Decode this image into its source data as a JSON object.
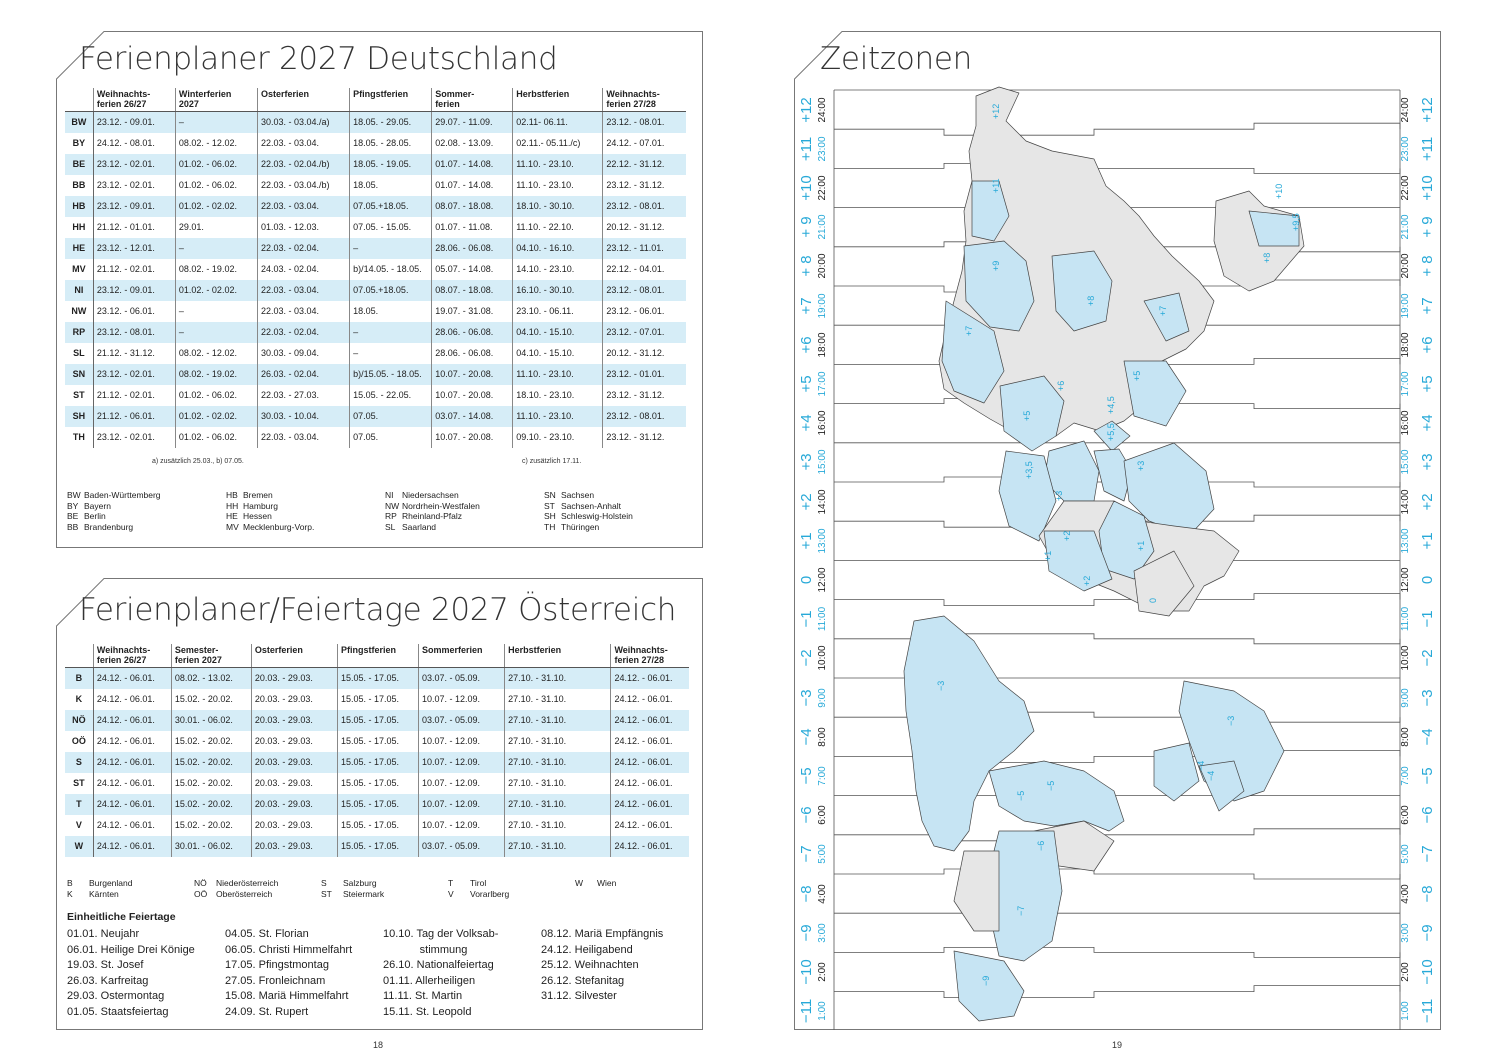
{
  "de": {
    "title": "Ferienplaner 2027 Deutschland",
    "headers": [
      "Weihnachts-\nferien 26/27",
      "Winterferien\n2027",
      "Osterferien",
      "Pfingstferien",
      "Sommer-\nferien",
      "Herbstferien",
      "Weihnachts-\nferien 27/28"
    ],
    "rows": [
      {
        "abbr": "BW",
        "cells": [
          "23.12. - 09.01.",
          "–",
          "30.03. - 03.04./a)",
          "18.05. - 29.05.",
          "29.07. - 11.09.",
          "02.11- 06.11.",
          "23.12. - 08.01."
        ]
      },
      {
        "abbr": "BY",
        "cells": [
          "24.12. - 08.01.",
          "08.02. - 12.02.",
          "22.03. - 03.04.",
          "18.05. - 28.05.",
          "02.08. - 13.09.",
          "02.11.- 05.11./c)",
          "24.12. - 07.01."
        ]
      },
      {
        "abbr": "BE",
        "cells": [
          "23.12. - 02.01.",
          "01.02. - 06.02.",
          "22.03. - 02.04./b)",
          "18.05. - 19.05.",
          "01.07. - 14.08.",
          "11.10. - 23.10.",
          "22.12. - 31.12."
        ]
      },
      {
        "abbr": "BB",
        "cells": [
          "23.12. - 02.01.",
          "01.02. - 06.02.",
          "22.03. - 03.04./b)",
          "18.05.",
          "01.07. - 14.08.",
          "11.10. - 23.10.",
          "23.12. - 31.12."
        ]
      },
      {
        "abbr": "HB",
        "cells": [
          "23.12. - 09.01.",
          "01.02. - 02.02.",
          "22.03. - 03.04.",
          "07.05.+18.05.",
          "08.07. - 18.08.",
          "18.10. - 30.10.",
          "23.12. - 08.01."
        ]
      },
      {
        "abbr": "HH",
        "cells": [
          "21.12. - 01.01.",
          "29.01.",
          "01.03. - 12.03.",
          "07.05. - 15.05.",
          "01.07. - 11.08.",
          "11.10. - 22.10.",
          "20.12. - 31.12."
        ]
      },
      {
        "abbr": "HE",
        "cells": [
          "23.12. - 12.01.",
          "–",
          "22.03. - 02.04.",
          "–",
          "28.06. - 06.08.",
          "04.10. - 16.10.",
          "23.12. - 11.01."
        ]
      },
      {
        "abbr": "MV",
        "cells": [
          "21.12. - 02.01.",
          "08.02. - 19.02.",
          "24.03. - 02.04.",
          "b)/14.05. - 18.05.",
          "05.07. - 14.08.",
          "14.10. - 23.10.",
          "22.12. - 04.01."
        ]
      },
      {
        "abbr": "NI",
        "cells": [
          "23.12. - 09.01.",
          "01.02. - 02.02.",
          "22.03. - 03.04.",
          "07.05.+18.05.",
          "08.07. - 18.08.",
          "16.10. - 30.10.",
          "23.12. - 08.01."
        ]
      },
      {
        "abbr": "NW",
        "cells": [
          "23.12. - 06.01.",
          "–",
          "22.03. - 03.04.",
          "18.05.",
          "19.07. - 31.08.",
          "23.10. - 06.11.",
          "23.12. - 06.01."
        ]
      },
      {
        "abbr": "RP",
        "cells": [
          "23.12. - 08.01.",
          "–",
          "22.03. - 02.04.",
          "–",
          "28.06. - 06.08.",
          "04.10. - 15.10.",
          "23.12. - 07.01."
        ]
      },
      {
        "abbr": "SL",
        "cells": [
          "21.12. - 31.12.",
          "08.02. - 12.02.",
          "30.03. - 09.04.",
          "–",
          "28.06. - 06.08.",
          "04.10. - 15.10.",
          "20.12. - 31.12."
        ]
      },
      {
        "abbr": "SN",
        "cells": [
          "23.12. - 02.01.",
          "08.02. - 19.02.",
          "26.03. - 02.04.",
          "b)/15.05. - 18.05.",
          "10.07. - 20.08.",
          "11.10. - 23.10.",
          "23.12. - 01.01."
        ]
      },
      {
        "abbr": "ST",
        "cells": [
          "21.12. - 02.01.",
          "01.02. - 06.02.",
          "22.03. - 27.03.",
          "15.05. - 22.05.",
          "10.07. - 20.08.",
          "18.10. - 23.10.",
          "23.12. - 31.12."
        ]
      },
      {
        "abbr": "SH",
        "cells": [
          "21.12. - 06.01.",
          "01.02. - 02.02.",
          "30.03. - 10.04.",
          "07.05.",
          "03.07. - 14.08.",
          "11.10. - 23.10.",
          "23.12. - 08.01."
        ]
      },
      {
        "abbr": "TH",
        "cells": [
          "23.12. - 02.01.",
          "01.02. - 06.02.",
          "22.03. - 03.04.",
          "07.05.",
          "10.07. - 20.08.",
          "09.10. - 23.10.",
          "23.12. - 31.12."
        ]
      }
    ],
    "footnote_a": "a) zusätzlich 25.03., b) 07.05.",
    "footnote_c": "c) zusätzlich 17.11.",
    "legend": [
      [
        {
          "ab": "BW",
          "name": "Baden-Württemberg"
        },
        {
          "ab": "BY",
          "name": "Bayern"
        },
        {
          "ab": "BE",
          "name": "Berlin"
        },
        {
          "ab": "BB",
          "name": "Brandenburg"
        }
      ],
      [
        {
          "ab": "HB",
          "name": "Bremen"
        },
        {
          "ab": "HH",
          "name": "Hamburg"
        },
        {
          "ab": "HE",
          "name": "Hessen"
        },
        {
          "ab": "MV",
          "name": "Mecklenburg-Vorp."
        }
      ],
      [
        {
          "ab": "NI",
          "name": "Niedersachsen"
        },
        {
          "ab": "NW",
          "name": "Nordrhein-Westfalen"
        },
        {
          "ab": "RP",
          "name": "Rheinland-Pfalz"
        },
        {
          "ab": "SL",
          "name": "Saarland"
        }
      ],
      [
        {
          "ab": "SN",
          "name": "Sachsen"
        },
        {
          "ab": "ST",
          "name": "Sachsen-Anhalt"
        },
        {
          "ab": "SH",
          "name": "Schleswig-Holstein"
        },
        {
          "ab": "TH",
          "name": "Thüringen"
        }
      ]
    ]
  },
  "at": {
    "title": "Ferienplaner/Feiertage 2027 Österreich",
    "headers": [
      "Weihnachts-\nferien 26/27",
      "Semester-\nferien 2027",
      "Osterferien",
      "Pfingstferien",
      "Sommerferien",
      "Herbstferien",
      "Weihnachts-\nferien 27/28"
    ],
    "rows": [
      {
        "abbr": "B",
        "cells": [
          "24.12. - 06.01.",
          "08.02. - 13.02.",
          "20.03. - 29.03.",
          "15.05. - 17.05.",
          "03.07. - 05.09.",
          "27.10. - 31.10.",
          "24.12. - 06.01."
        ]
      },
      {
        "abbr": "K",
        "cells": [
          "24.12. - 06.01.",
          "15.02. - 20.02.",
          "20.03. - 29.03.",
          "15.05. - 17.05.",
          "10.07. - 12.09.",
          "27.10. - 31.10.",
          "24.12. - 06.01."
        ]
      },
      {
        "abbr": "NÖ",
        "cells": [
          "24.12. - 06.01.",
          "30.01. - 06.02.",
          "20.03. - 29.03.",
          "15.05. - 17.05.",
          "03.07. - 05.09.",
          "27.10. - 31.10.",
          "24.12. - 06.01."
        ]
      },
      {
        "abbr": "OÖ",
        "cells": [
          "24.12. - 06.01.",
          "15.02. - 20.02.",
          "20.03. - 29.03.",
          "15.05. - 17.05.",
          "10.07. - 12.09.",
          "27.10. - 31.10.",
          "24.12. - 06.01."
        ]
      },
      {
        "abbr": "S",
        "cells": [
          "24.12. - 06.01.",
          "15.02. - 20.02.",
          "20.03. - 29.03.",
          "15.05. - 17.05.",
          "10.07. - 12.09.",
          "27.10. - 31.10.",
          "24.12. - 06.01."
        ]
      },
      {
        "abbr": "ST",
        "cells": [
          "24.12. - 06.01.",
          "15.02. - 20.02.",
          "20.03. - 29.03.",
          "15.05. - 17.05.",
          "10.07. - 12.09.",
          "27.10. - 31.10.",
          "24.12. - 06.01."
        ]
      },
      {
        "abbr": "T",
        "cells": [
          "24.12. - 06.01.",
          "15.02. - 20.02.",
          "20.03. - 29.03.",
          "15.05. - 17.05.",
          "10.07. - 12.09.",
          "27.10. - 31.10.",
          "24.12. - 06.01."
        ]
      },
      {
        "abbr": "V",
        "cells": [
          "24.12. - 06.01.",
          "15.02. - 20.02.",
          "20.03. - 29.03.",
          "15.05. - 17.05.",
          "10.07. - 12.09.",
          "27.10. - 31.10.",
          "24.12. - 06.01."
        ]
      },
      {
        "abbr": "W",
        "cells": [
          "24.12. - 06.01.",
          "30.01. - 06.02.",
          "20.03. - 29.03.",
          "15.05. - 17.05.",
          "03.07. - 05.09.",
          "27.10. - 31.10.",
          "24.12. - 06.01."
        ]
      }
    ],
    "legend": [
      [
        {
          "ab": "B",
          "name": "Burgenland"
        },
        {
          "ab": "K",
          "name": "Kärnten"
        }
      ],
      [
        {
          "ab": "NÖ",
          "name": "Niederösterreich"
        },
        {
          "ab": "OÖ",
          "name": "Oberösterreich"
        }
      ],
      [
        {
          "ab": "S",
          "name": "Salzburg"
        },
        {
          "ab": "ST",
          "name": "Steiermark"
        }
      ],
      [
        {
          "ab": "T",
          "name": "Tirol"
        },
        {
          "ab": "V",
          "name": "Vorarlberg"
        }
      ],
      [
        {
          "ab": "W",
          "name": "Wien"
        }
      ]
    ],
    "holidays_title": "Einheitliche Feiertage",
    "holidays": [
      [
        "01.01. Neujahr",
        "06.01. Heilige Drei Könige",
        "19.03. St. Josef",
        "26.03. Karfreitag",
        "29.03. Ostermontag",
        "01.05. Staatsfeiertag"
      ],
      [
        "04.05. St. Florian",
        "06.05. Christi Himmelfahrt",
        "17.05. Pfingstmontag",
        "27.05. Fronleichnam",
        "15.08. Mariä Himmelfahrt",
        "24.09. St. Rupert"
      ],
      [
        "10.10. Tag der Volksab-",
        "            stimmung",
        "26.10. Nationalfeiertag",
        "01.11. Allerheiligen",
        "11.11. St. Martin",
        "15.11. St. Leopold"
      ],
      [
        "08.12. Mariä Empfängnis",
        "24.12. Heiligabend",
        "25.12. Weihnachten",
        "26.12. Stefanitag",
        "31.12. Silvester"
      ]
    ]
  },
  "tz": {
    "title": "Zeitzonen",
    "zones": [
      {
        "offset": "+12",
        "time": "24:00"
      },
      {
        "offset": "+11",
        "time": "23:00"
      },
      {
        "offset": "+10",
        "time": "22:00"
      },
      {
        "offset": "+ 9",
        "time": "21:00"
      },
      {
        "offset": "+ 8",
        "time": "20:00"
      },
      {
        "offset": "+7",
        "time": "19:00"
      },
      {
        "offset": "+6",
        "time": "18:00"
      },
      {
        "offset": "+5",
        "time": "17:00"
      },
      {
        "offset": "+4",
        "time": "16:00"
      },
      {
        "offset": "+3",
        "time": "15:00"
      },
      {
        "offset": "+2",
        "time": "14:00"
      },
      {
        "offset": "+1",
        "time": "13:00"
      },
      {
        "offset": "0",
        "time": "12:00"
      },
      {
        "offset": "−1",
        "time": "11:00"
      },
      {
        "offset": "−2",
        "time": "10:00"
      },
      {
        "offset": "−3",
        "time": "9:00"
      },
      {
        "offset": "−4",
        "time": "8:00"
      },
      {
        "offset": "−5",
        "time": "7:00"
      },
      {
        "offset": "−6",
        "time": "6:00"
      },
      {
        "offset": "−7",
        "time": "5:00"
      },
      {
        "offset": "−8",
        "time": "4:00"
      },
      {
        "offset": "−9",
        "time": "3:00"
      },
      {
        "offset": "−10",
        "time": "2:00"
      },
      {
        "offset": "−11",
        "time": "1:00"
      }
    ],
    "map_labels": [
      "+12",
      "+11",
      "+10",
      "+9,5",
      "+9",
      "+8",
      "+8",
      "+7",
      "+7",
      "+6",
      "+5",
      "+5",
      "+4,5",
      "+5,5",
      "+3,5",
      "+3",
      "+3",
      "+2",
      "+2",
      "+1",
      "+1",
      "0",
      "−3",
      "−3",
      "−4",
      "−4",
      "−5",
      "−5",
      "−6",
      "−7",
      "−9"
    ],
    "colors": {
      "accent": "#27a9d8",
      "land_highlight": "#c6e4f3",
      "land_other": "#e6e6e6"
    }
  },
  "pages": {
    "left": "18",
    "right": "19"
  }
}
